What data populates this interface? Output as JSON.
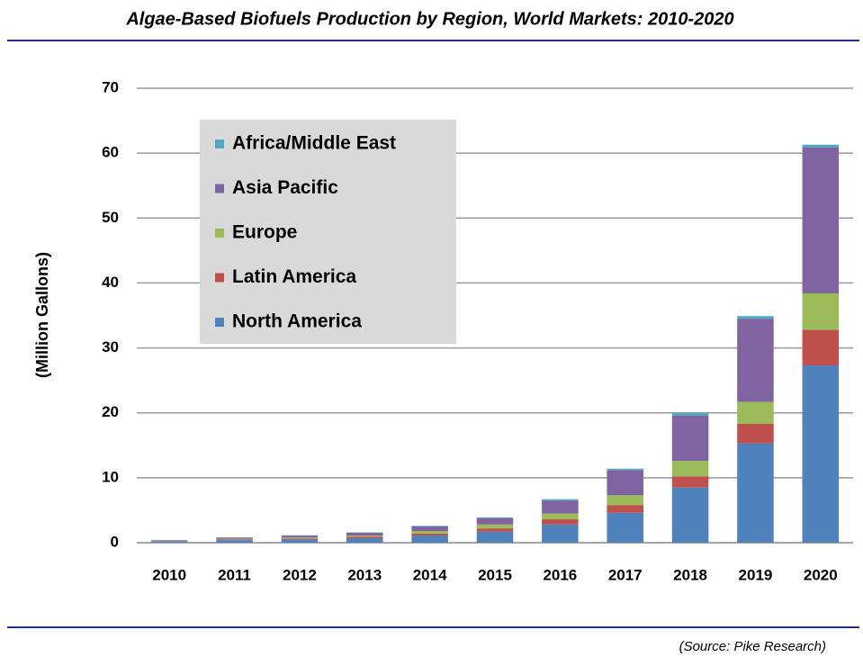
{
  "chart_data": {
    "type": "bar",
    "stacked": true,
    "title": "Algae-Based Biofuels Production by Region, World Markets:  2010-2020",
    "y_label": "(Million Gallons)",
    "source": "(Source: Pike Research)",
    "categories": [
      "2010",
      "2011",
      "2012",
      "2013",
      "2014",
      "2015",
      "2016",
      "2017",
      "2018",
      "2019",
      "2020"
    ],
    "series": [
      {
        "name": "North America",
        "color": "#4f81bd",
        "values": [
          0.2,
          0.4,
          0.5,
          0.7,
          1.1,
          1.7,
          2.8,
          4.6,
          8.5,
          15.3,
          27.3
        ]
      },
      {
        "name": "Latin America",
        "color": "#c0504d",
        "values": [
          0.05,
          0.1,
          0.15,
          0.2,
          0.3,
          0.5,
          0.8,
          1.2,
          1.7,
          3.0,
          5.5
        ]
      },
      {
        "name": "Europe",
        "color": "#9bbb59",
        "values": [
          0.05,
          0.1,
          0.15,
          0.2,
          0.4,
          0.6,
          0.9,
          1.5,
          2.4,
          3.4,
          5.6
        ]
      },
      {
        "name": "Asia Pacific",
        "color": "#8064a2",
        "values": [
          0.1,
          0.2,
          0.3,
          0.45,
          0.7,
          1.0,
          2.0,
          3.9,
          7.0,
          12.8,
          22.5
        ]
      },
      {
        "name": "Africa/Middle East",
        "color": "#4bacc6",
        "values": [
          0.02,
          0.03,
          0.05,
          0.05,
          0.1,
          0.1,
          0.2,
          0.2,
          0.4,
          0.4,
          0.4
        ]
      }
    ],
    "ylim": [
      0,
      70
    ],
    "yticks": [
      0,
      10,
      20,
      30,
      40,
      50,
      60,
      70
    ],
    "grid": true,
    "legend": "upper left"
  }
}
